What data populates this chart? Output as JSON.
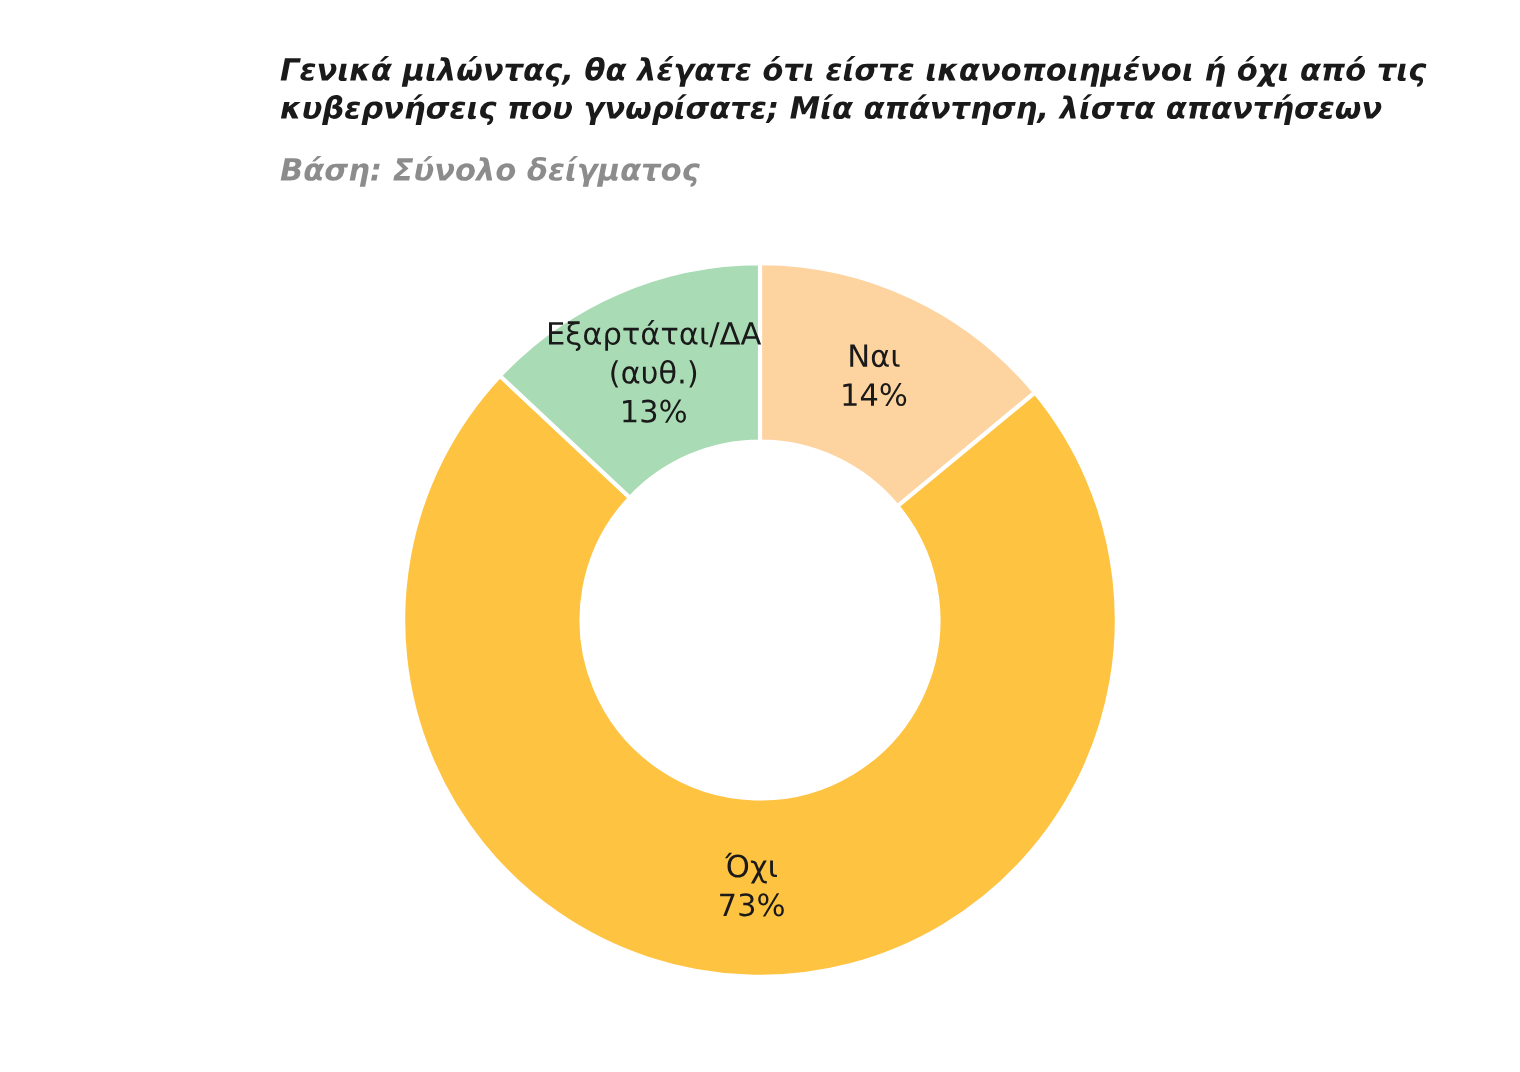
{
  "chart_data": {
    "type": "donut",
    "title": "Γενικά μιλώντας, θα λέγατε ότι είστε ικανοποιημένοι ή όχι από τις\nκυβερνήσεις που γνωρίσατε; Μία απάντηση, λίστα απαντήσεων",
    "subtitle": "Βάση: Σύνολο δείγματος",
    "categories": [
      "Ναι",
      "Όχι",
      "Εξαρτάται/ΔΑ\n(αυθ.)"
    ],
    "values": [
      14,
      73,
      13
    ],
    "value_labels": [
      "14%",
      "73%",
      "13%"
    ],
    "colors": [
      "#fdd3a0",
      "#ffc342",
      "#a9dbb5"
    ],
    "legend": false
  }
}
